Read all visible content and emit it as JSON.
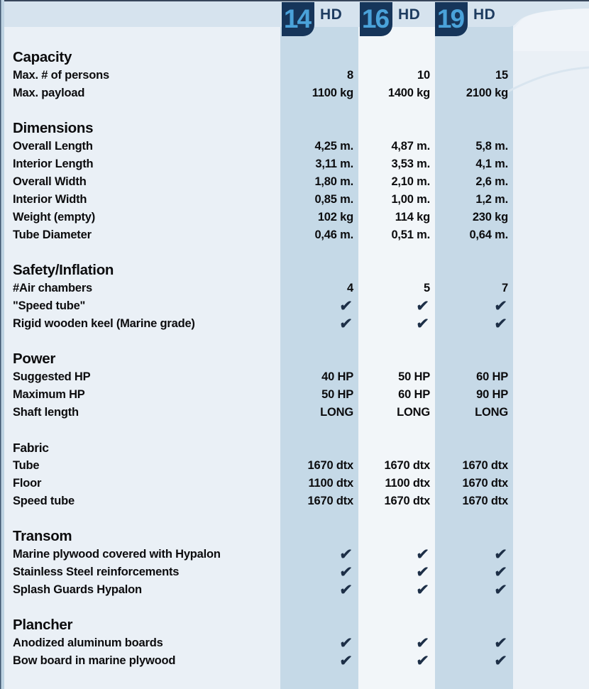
{
  "models": [
    {
      "number": "14",
      "suffix": "HD"
    },
    {
      "number": "16",
      "suffix": "HD"
    },
    {
      "number": "19",
      "suffix": "HD"
    }
  ],
  "icons": {
    "check": "✔"
  },
  "colors": {
    "badge_navy": "#16355a",
    "badge_number_blue": "#4aa2da",
    "hd_text_navy": "#1e3c60",
    "band_blue": "#c5d9e7",
    "band_light": "#f2f6f9",
    "top_strip_blue": "#d6e3ee",
    "page_background": "#eaf0f6",
    "checkmark_navy": "#1d2f47",
    "body_text": "#0c0c0e"
  },
  "sections": [
    {
      "title": "Capacity",
      "rows": [
        {
          "label": "Max. # of persons",
          "values": [
            "8",
            "10",
            "15"
          ]
        },
        {
          "label": "Max. payload",
          "values": [
            "1100 kg",
            "1400 kg",
            "2100 kg"
          ]
        }
      ]
    },
    {
      "title": "Dimensions",
      "rows": [
        {
          "label": "Overall Length",
          "values": [
            "4,25 m.",
            "4,87 m.",
            "5,8 m."
          ]
        },
        {
          "label": "Interior Length",
          "values": [
            "3,11 m.",
            "3,53 m.",
            "4,1 m."
          ]
        },
        {
          "label": "Overall Width",
          "values": [
            "1,80 m.",
            "2,10 m.",
            "2,6 m."
          ]
        },
        {
          "label": "Interior Width",
          "values": [
            "0,85 m.",
            "1,00 m.",
            "1,2 m."
          ]
        },
        {
          "label": "Weight (empty)",
          "values": [
            "102 kg",
            "114 kg",
            "230 kg"
          ]
        },
        {
          "label": "Tube Diameter",
          "values": [
            "0,46 m.",
            "0,51 m.",
            "0,64 m."
          ]
        }
      ]
    },
    {
      "title": "Safety/Inflation",
      "rows": [
        {
          "label": "#Air chambers",
          "values": [
            "4",
            "5",
            "7"
          ]
        },
        {
          "label": "\"Speed tube\"",
          "values": [
            "✔",
            "✔",
            "✔"
          ]
        },
        {
          "label": "Rigid wooden keel (Marine grade)",
          "values": [
            "✔",
            "✔",
            "✔"
          ]
        }
      ]
    },
    {
      "title": "Power",
      "rows": [
        {
          "label": "Suggested HP",
          "values": [
            "40 HP",
            "50 HP",
            "60 HP"
          ]
        },
        {
          "label": "Maximum HP",
          "values": [
            "50 HP",
            "60 HP",
            "90 HP"
          ]
        },
        {
          "label": "Shaft length",
          "values": [
            "LONG",
            "LONG",
            "LONG"
          ]
        }
      ]
    },
    {
      "title": "Fabric",
      "small": true,
      "rows": [
        {
          "label": "Tube",
          "values": [
            "1670 dtx",
            "1670 dtx",
            "1670 dtx"
          ]
        },
        {
          "label": "Floor",
          "values": [
            "1100 dtx",
            "1100 dtx",
            "1670 dtx"
          ]
        },
        {
          "label": "Speed tube",
          "values": [
            "1670 dtx",
            "1670 dtx",
            "1670 dtx"
          ]
        }
      ]
    },
    {
      "title": "Transom",
      "rows": [
        {
          "label": "Marine plywood covered with Hypalon",
          "values": [
            "✔",
            "✔",
            "✔"
          ]
        },
        {
          "label": "Stainless Steel reinforcements",
          "values": [
            "✔",
            "✔",
            "✔"
          ]
        },
        {
          "label": "Splash Guards Hypalon",
          "values": [
            "✔",
            "✔",
            "✔"
          ]
        }
      ]
    },
    {
      "title": "Plancher",
      "rows": [
        {
          "label": "Anodized aluminum boards",
          "values": [
            "✔",
            "✔",
            "✔"
          ]
        },
        {
          "label": "Bow board in marine plywood",
          "values": [
            "✔",
            "✔",
            "✔"
          ]
        }
      ]
    }
  ]
}
